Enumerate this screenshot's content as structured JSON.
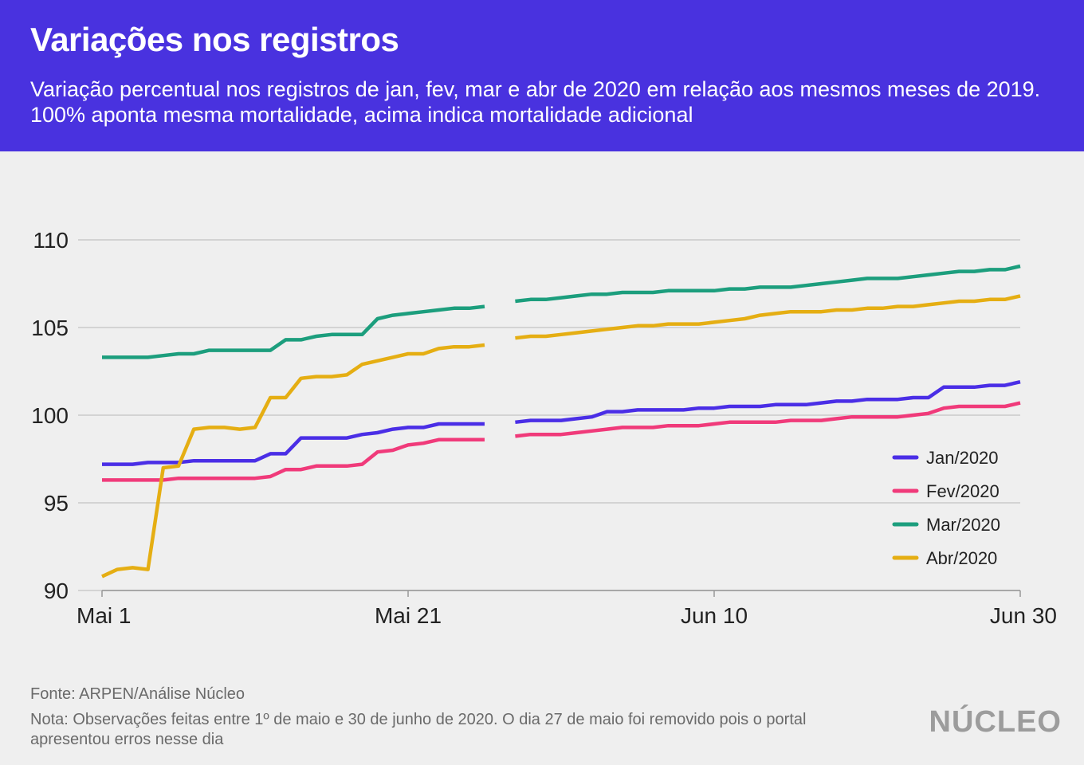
{
  "header": {
    "title": "Variações nos registros",
    "subtitle": "Variação percentual nos registros de jan, fev, mar e abr de 2020 em relação aos mesmos meses de 2019. 100% aponta mesma mortalidade, acima indica mortalidade adicional"
  },
  "footer": {
    "source": "Fonte: ARPEN/Análise Núcleo",
    "note": "Nota: Observações feitas entre 1º de maio e 30 de junho de 2020. O dia 27 de maio foi removido pois o portal apresentou erros nesse dia",
    "logo": "NÚCLEO"
  },
  "chart_data": {
    "type": "line",
    "x": [
      "Mai 1",
      "Mai 2",
      "Mai 3",
      "Mai 4",
      "Mai 5",
      "Mai 6",
      "Mai 7",
      "Mai 8",
      "Mai 9",
      "Mai 10",
      "Mai 11",
      "Mai 12",
      "Mai 13",
      "Mai 14",
      "Mai 15",
      "Mai 16",
      "Mai 17",
      "Mai 18",
      "Mai 19",
      "Mai 20",
      "Mai 21",
      "Mai 22",
      "Mai 23",
      "Mai 24",
      "Mai 25",
      "Mai 26",
      "Mai 27",
      "Mai 28",
      "Mai 29",
      "Mai 30",
      "Mai 31",
      "Jun 1",
      "Jun 2",
      "Jun 3",
      "Jun 4",
      "Jun 5",
      "Jun 6",
      "Jun 7",
      "Jun 8",
      "Jun 9",
      "Jun 10",
      "Jun 11",
      "Jun 12",
      "Jun 13",
      "Jun 14",
      "Jun 15",
      "Jun 16",
      "Jun 17",
      "Jun 18",
      "Jun 19",
      "Jun 20",
      "Jun 21",
      "Jun 22",
      "Jun 23",
      "Jun 24",
      "Jun 25",
      "Jun 26",
      "Jun 27",
      "Jun 28",
      "Jun 29",
      "Jun 30"
    ],
    "x_ticks": [
      "Mai 1",
      "Mai 21",
      "Jun 10",
      "Jun 30"
    ],
    "y_ticks": [
      90,
      95,
      100,
      105,
      110
    ],
    "ylim": [
      90,
      110
    ],
    "gap_index": 26,
    "series": [
      {
        "name": "Jan/2020",
        "color": "#4a2ee6",
        "values": [
          97.2,
          97.2,
          97.2,
          97.3,
          97.3,
          97.3,
          97.4,
          97.4,
          97.4,
          97.4,
          97.4,
          97.8,
          97.8,
          98.7,
          98.7,
          98.7,
          98.7,
          98.9,
          99.0,
          99.2,
          99.3,
          99.3,
          99.5,
          99.5,
          99.5,
          99.5,
          null,
          99.6,
          99.7,
          99.7,
          99.7,
          99.8,
          99.9,
          100.2,
          100.2,
          100.3,
          100.3,
          100.3,
          100.3,
          100.4,
          100.4,
          100.5,
          100.5,
          100.5,
          100.6,
          100.6,
          100.6,
          100.7,
          100.8,
          100.8,
          100.9,
          100.9,
          100.9,
          101.0,
          101.0,
          101.6,
          101.6,
          101.6,
          101.7,
          101.7,
          101.9
        ]
      },
      {
        "name": "Fev/2020",
        "color": "#f03a7a",
        "values": [
          96.3,
          96.3,
          96.3,
          96.3,
          96.3,
          96.4,
          96.4,
          96.4,
          96.4,
          96.4,
          96.4,
          96.5,
          96.9,
          96.9,
          97.1,
          97.1,
          97.1,
          97.2,
          97.9,
          98.0,
          98.3,
          98.4,
          98.6,
          98.6,
          98.6,
          98.6,
          null,
          98.8,
          98.9,
          98.9,
          98.9,
          99.0,
          99.1,
          99.2,
          99.3,
          99.3,
          99.3,
          99.4,
          99.4,
          99.4,
          99.5,
          99.6,
          99.6,
          99.6,
          99.6,
          99.7,
          99.7,
          99.7,
          99.8,
          99.9,
          99.9,
          99.9,
          99.9,
          100.0,
          100.1,
          100.4,
          100.5,
          100.5,
          100.5,
          100.5,
          100.7
        ]
      },
      {
        "name": "Mar/2020",
        "color": "#1c9e7d",
        "values": [
          103.3,
          103.3,
          103.3,
          103.3,
          103.4,
          103.5,
          103.5,
          103.7,
          103.7,
          103.7,
          103.7,
          103.7,
          104.3,
          104.3,
          104.5,
          104.6,
          104.6,
          104.6,
          105.5,
          105.7,
          105.8,
          105.9,
          106.0,
          106.1,
          106.1,
          106.2,
          null,
          106.5,
          106.6,
          106.6,
          106.7,
          106.8,
          106.9,
          106.9,
          107.0,
          107.0,
          107.0,
          107.1,
          107.1,
          107.1,
          107.1,
          107.2,
          107.2,
          107.3,
          107.3,
          107.3,
          107.4,
          107.5,
          107.6,
          107.7,
          107.8,
          107.8,
          107.8,
          107.9,
          108.0,
          108.1,
          108.2,
          108.2,
          108.3,
          108.3,
          108.5
        ]
      },
      {
        "name": "Abr/2020",
        "color": "#e5ae13",
        "values": [
          90.8,
          91.2,
          91.3,
          91.2,
          97.0,
          97.1,
          99.2,
          99.3,
          99.3,
          99.2,
          99.3,
          101.0,
          101.0,
          102.1,
          102.2,
          102.2,
          102.3,
          102.9,
          103.1,
          103.3,
          103.5,
          103.5,
          103.8,
          103.9,
          103.9,
          104.0,
          null,
          104.4,
          104.5,
          104.5,
          104.6,
          104.7,
          104.8,
          104.9,
          105.0,
          105.1,
          105.1,
          105.2,
          105.2,
          105.2,
          105.3,
          105.4,
          105.5,
          105.7,
          105.8,
          105.9,
          105.9,
          105.9,
          106.0,
          106.0,
          106.1,
          106.1,
          106.2,
          106.2,
          106.3,
          106.4,
          106.5,
          106.5,
          106.6,
          106.6,
          106.8
        ]
      }
    ]
  }
}
